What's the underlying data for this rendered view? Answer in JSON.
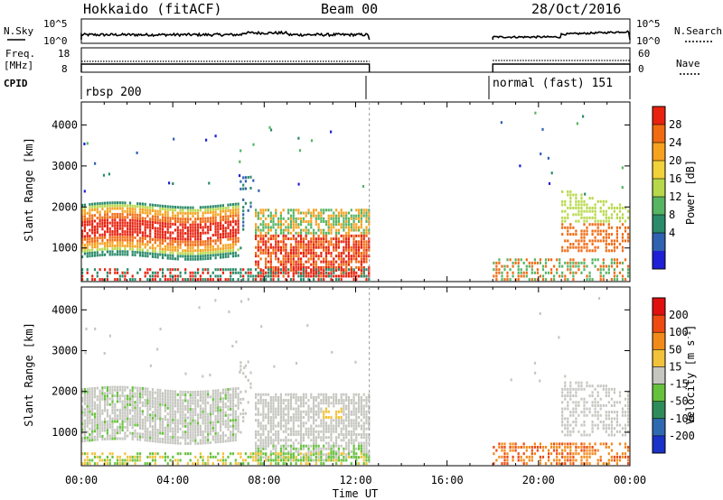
{
  "header": {
    "title": "Hokkaido (fitACF)",
    "beam": "Beam 00",
    "date": "28/Oct/2016"
  },
  "top_panels": {
    "nsky_label": "N.Sky",
    "nsky_ticks": [
      "10^5",
      "10^0"
    ],
    "nsearch_label": "N.Search",
    "nsearch_ticks": [
      "10^5",
      "10^0"
    ],
    "freq_label": "Freq.",
    "freq_unit": "[MHz]",
    "freq_ticks": [
      "18",
      "8"
    ],
    "nave_label": "Nave",
    "nave_ticks": [
      "60",
      "0"
    ],
    "cpid_label": "CPID",
    "cpid_modes": [
      {
        "name": "rbsp 200",
        "start_hour": 0,
        "end_hour": 12.6
      },
      {
        "name": "normal (fast) 151",
        "start_hour": 18,
        "end_hour": 24
      }
    ]
  },
  "chart_data": [
    {
      "type": "heatmap",
      "name": "power",
      "ylabel": "Slant Range [km]",
      "ylim": [
        180,
        4560
      ],
      "yticks": [
        "1000",
        "2000",
        "3000",
        "4000"
      ],
      "colorbar_label": "Power [dB]",
      "colorbar_ticks": [
        "28",
        "24",
        "20",
        "16",
        "12",
        "8",
        "4"
      ],
      "colors": [
        "#1f1fd6",
        "#2f62b0",
        "#2a8a6a",
        "#56b463",
        "#b7d84a",
        "#f2d23a",
        "#f6a21f",
        "#f26a12",
        "#e8220f"
      ],
      "data_gap_hours": [
        12.6,
        18.0
      ]
    },
    {
      "type": "heatmap",
      "name": "velocity",
      "ylabel": "Slant Range [km]",
      "ylim": [
        180,
        4560
      ],
      "yticks": [
        "1000",
        "2000",
        "3000",
        "4000"
      ],
      "colorbar_label": "Velocity [m s",
      "colorbar_unit_sup": "-1",
      "colorbar_unit_end": "]",
      "colorbar_ticks": [
        "200",
        "100",
        "50",
        "15",
        "-15",
        "-50",
        "-100",
        "-200"
      ],
      "colors": [
        "#1a32c8",
        "#2f6ab0",
        "#2e8c5a",
        "#66c23c",
        "#c6c6c0",
        "#f2c23a",
        "#f28a1a",
        "#ee4a12",
        "#e01010"
      ],
      "data_gap_hours": [
        12.6,
        18.0
      ]
    }
  ],
  "x_axis": {
    "label": "Time UT",
    "range_hours": [
      0,
      24
    ],
    "ticks": [
      "00:00",
      "04:00",
      "08:00",
      "12:00",
      "16:00",
      "20:00",
      "00:00"
    ]
  }
}
